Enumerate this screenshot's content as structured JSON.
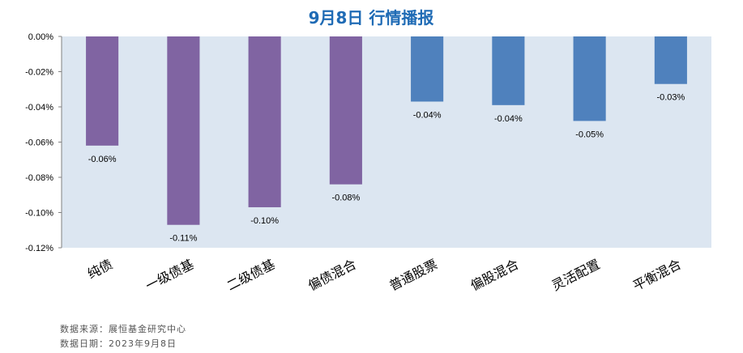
{
  "chart_data": {
    "type": "bar",
    "title": "9月8日  行情播报",
    "categories": [
      "纯债",
      "一级债基",
      "二级债基",
      "偏债混合",
      "普通股票",
      "偏股混合",
      "灵活配置",
      "平衡混合"
    ],
    "values": [
      -0.062,
      -0.107,
      -0.097,
      -0.084,
      -0.037,
      -0.039,
      -0.048,
      -0.027
    ],
    "data_labels": [
      "-0.06%",
      "-0.11%",
      "-0.10%",
      "-0.08%",
      "-0.04%",
      "-0.04%",
      "-0.05%",
      "-0.03%"
    ],
    "ylim": [
      -0.12,
      0.0
    ],
    "yticks": [
      "0.00%",
      "-0.02%",
      "-0.04%",
      "-0.06%",
      "-0.08%",
      "-0.10%",
      "-0.12%"
    ],
    "colors": [
      "#8064a2",
      "#8064a2",
      "#8064a2",
      "#8064a2",
      "#4f81bd",
      "#4f81bd",
      "#4f81bd",
      "#4f81bd"
    ],
    "plot_background": "#dce6f1",
    "grid": false,
    "legend": "none"
  },
  "footer": {
    "source": "数据来源：展恒基金研究中心",
    "date": "数据日期：2023年9月8日"
  }
}
